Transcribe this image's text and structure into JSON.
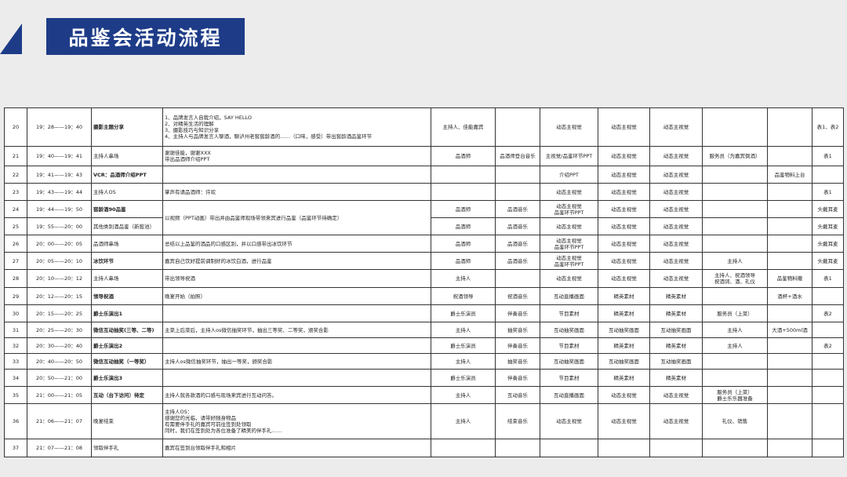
{
  "header": {
    "title": "品鉴会活动流程",
    "accent_color": "#1d3b87"
  },
  "rows": [
    {
      "no": "20",
      "time": "19：28——19：40",
      "program": "摄影主题分享",
      "bold": true,
      "content": "1、品牌发言人自我介绍，SAY HELLO\n2、对精英生活的理解\n3、摄影技巧与知识分享\n4、主持人与品牌发言人聊酒，聊泸州老窖窖龄酒的……（口味，感受）带出窖龄酒品鉴环节",
      "cells": [
        "主持人、佳能嘉宾",
        "",
        "动态主视觉",
        "动态主视觉",
        "动态主视觉",
        "",
        "",
        "表1、表2"
      ]
    },
    {
      "no": "21",
      "time": "19：40——19：41",
      "program": "主持人串场",
      "bold": false,
      "content": "谢谢佳能，谢谢XXX\n带出品酒师介绍PPT",
      "cells": [
        "品酒师",
        "品酒师登台音乐",
        "主视觉/品鉴环节PPT",
        "动态主视觉",
        "动态主视觉",
        "服务员（为嘉宾倒酒）",
        "",
        "表1"
      ]
    },
    {
      "no": "22",
      "time": "19：41——19：43",
      "program": "VCR：品酒师介绍PPT",
      "bold": true,
      "content": "",
      "cells": [
        "",
        "",
        "介绍PPT",
        "动态主视觉",
        "动态主视觉",
        "",
        "品鉴物料上台",
        ""
      ]
    },
    {
      "no": "23",
      "time": "19：43——19：44",
      "program": "主持人OS",
      "bold": false,
      "content": "掌声有请品酒师：许欢",
      "cells": [
        "",
        "",
        "动态主视觉",
        "动态主视觉",
        "动态主视觉",
        "",
        "",
        "表1"
      ]
    },
    {
      "no": "24",
      "time": "19：44——19：50",
      "program": "窖龄酒90品鉴",
      "bold": true,
      "content": "以视频（PPT动画）带出并由品鉴师现场带领来宾进行品鉴（品鉴环节待确定）",
      "content_rows": 2,
      "cells": [
        "品酒师",
        "品酒音乐",
        "动态主视觉\n品鉴环节PPT",
        "动态主视觉",
        "动态主视觉",
        "",
        "",
        "头戴耳麦"
      ]
    },
    {
      "no": "25",
      "time": "19：55——20：00",
      "program": "其他类别酒品鉴（新窖池）",
      "bold": false,
      "cells": [
        "品酒师",
        "品酒音乐",
        "动态主视觉",
        "动态主视觉",
        "动态主视觉",
        "",
        "",
        "头戴耳麦"
      ]
    },
    {
      "no": "26",
      "time": "20：00——20：05",
      "program": "品酒师串场",
      "bold": false,
      "content": "总结以上品鉴的酒品的口感区别，并以口感带出冰饮环节",
      "cells": [
        "品酒师",
        "品酒音乐",
        "动态主视觉\n品鉴环节PPT",
        "动态主视觉",
        "动态主视觉",
        "",
        "",
        "头戴耳麦"
      ]
    },
    {
      "no": "27",
      "time": "20：05——20：10",
      "program": "冰饮环节",
      "bold": true,
      "content": "嘉宾自己饮好提前调制好的冰饮白酒，进行品鉴",
      "cells": [
        "品酒师",
        "品酒音乐",
        "动态主视觉\n品鉴环节PPT",
        "动态主视觉",
        "动态主视觉",
        "主持人",
        "",
        "头戴耳麦"
      ]
    },
    {
      "no": "28",
      "time": "20：10——20：12",
      "program": "主持人串场",
      "bold": false,
      "content": "带出领导祝酒",
      "cells": [
        "主持人",
        "",
        "动态主视觉",
        "动态主视觉",
        "动态主视觉",
        "主持人、祝酒领导\n祝酒词、酒、礼仪",
        "品鉴物料撤",
        "表1"
      ]
    },
    {
      "no": "29",
      "time": "20：12——20：15",
      "program": "领导祝酒",
      "bold": true,
      "content": "晚宴开始（拍照）",
      "cells": [
        "祝酒领导",
        "祝酒音乐",
        "互动直播画面",
        "精英素材",
        "精英素材",
        "",
        "酒杯+酒水",
        ""
      ]
    },
    {
      "no": "30",
      "time": "20：15——20：25",
      "program": "爵士乐演出1",
      "bold": true,
      "content": "",
      "cells": [
        "爵士乐演员",
        "伴奏音乐",
        "节目素材",
        "精英素材",
        "精英素材",
        "服务员（上菜）",
        "",
        "表2"
      ]
    },
    {
      "no": "31",
      "time": "20：25——20：30",
      "program": "微信互动抽奖(三等、二等)",
      "bold": true,
      "content": "主菜上后菜后，主持人os微信抽奖环节，抽出三等奖、二等奖，颁奖合影",
      "cells": [
        "主持人",
        "抽奖音乐",
        "互动抽奖画面",
        "互动抽奖画面",
        "互动抽奖画面",
        "主持人",
        "大酒+500ml酒",
        ""
      ]
    },
    {
      "no": "32",
      "time": "20：30——20：40",
      "program": "爵士乐演出2",
      "bold": true,
      "content": "",
      "cells": [
        "爵士乐演员",
        "伴奏音乐",
        "节目素材",
        "精英素材",
        "精英素材",
        "主持人",
        "",
        "表2"
      ]
    },
    {
      "no": "33",
      "time": "20：40——20：50",
      "program": "微信互动抽奖（一等奖）",
      "bold": true,
      "content": "主持人os微信抽奖环节，抽出一等奖，颁奖合影",
      "cells": [
        "主持人",
        "抽奖音乐",
        "互动抽奖画面",
        "互动抽奖画面",
        "互动抽奖画面",
        "",
        "",
        ""
      ]
    },
    {
      "no": "34",
      "time": "20：50——21：00",
      "program": "爵士乐演出3",
      "bold": true,
      "content": "",
      "cells": [
        "爵士乐演员",
        "伴奏音乐",
        "节目素材",
        "精英素材",
        "精英素材",
        "",
        "",
        ""
      ]
    },
    {
      "no": "35",
      "time": "21：00——21：05",
      "program": "互动（台下访问）待定",
      "bold": true,
      "content": "主持人就各款酒的口感与现场来宾进行互动问答。",
      "cells": [
        "主持人",
        "互动音乐",
        "互动直播画面",
        "动态主视觉",
        "动态主视觉",
        "服务员（上菜）\n爵士乐乐器准备",
        "",
        ""
      ]
    },
    {
      "no": "36",
      "time": "21：06——21：07",
      "program": "晚宴结束",
      "bold": false,
      "content": "主持人OS：\n感谢您的光临，请带好随身物品\n有需要伴手礼的嘉宾可前往签到处领取\n同时，我们在签到处为各位准备了精美的伴手礼……",
      "cells": [
        "主持人",
        "结束音乐",
        "动态主视觉",
        "动态主视觉",
        "动态主视觉",
        "礼仪、销售",
        "",
        ""
      ]
    },
    {
      "no": "37",
      "time": "21：07——21：08",
      "program": "领取伴手礼",
      "bold": false,
      "content": "嘉宾在签到台领取伴手礼和相片",
      "cells": [
        "",
        "",
        "",
        "",
        "",
        "",
        "",
        ""
      ]
    }
  ]
}
